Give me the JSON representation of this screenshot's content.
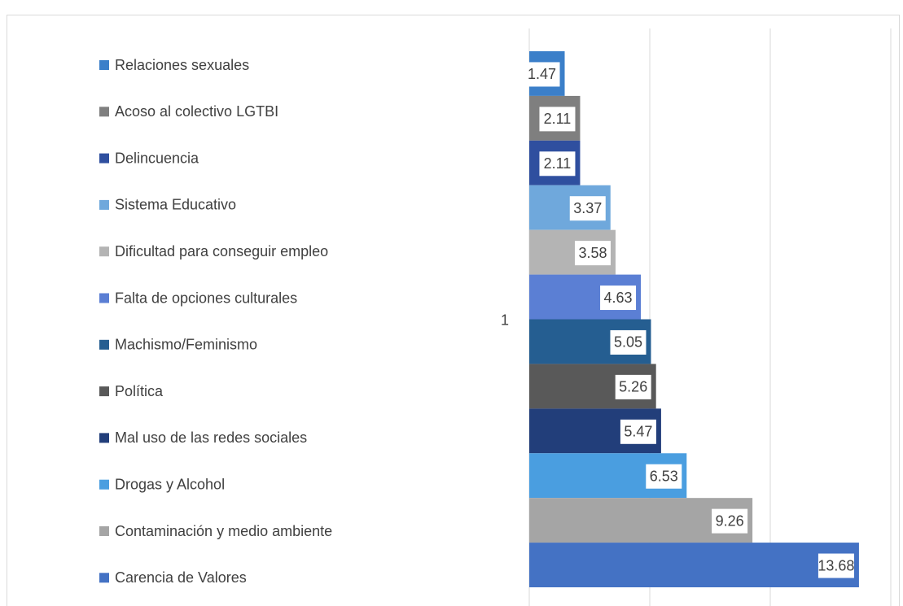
{
  "chart_data": {
    "type": "bar",
    "orientation": "horizontal",
    "categories": [
      "1"
    ],
    "series": [
      {
        "name": "Relaciones sexuales",
        "color": "#3b7fc9",
        "values": [
          1.47
        ]
      },
      {
        "name": "Acoso al colectivo LGTBI",
        "color": "#7f7f7f",
        "values": [
          2.11
        ]
      },
      {
        "name": "Delincuencia",
        "color": "#2f4f9f",
        "values": [
          2.11
        ]
      },
      {
        "name": "Sistema Educativo",
        "color": "#6fa8dc",
        "values": [
          3.37
        ]
      },
      {
        "name": "Dificultad para conseguir empleo",
        "color": "#b4b4b4",
        "values": [
          3.58
        ]
      },
      {
        "name": "Falta de opciones culturales",
        "color": "#5b7fd4",
        "values": [
          4.63
        ]
      },
      {
        "name": "Machismo/Feminismo",
        "color": "#255e91",
        "values": [
          5.05
        ]
      },
      {
        "name": "Política",
        "color": "#595959",
        "values": [
          5.26
        ]
      },
      {
        "name": "Mal uso de las redes sociales",
        "color": "#223e7a",
        "values": [
          5.47
        ]
      },
      {
        "name": "Drogas y Alcohol",
        "color": "#4a9ee0",
        "values": [
          6.53
        ]
      },
      {
        "name": "Contaminación y medio ambiente",
        "color": "#a5a5a5",
        "values": [
          9.26
        ]
      },
      {
        "name": "Carencia de Valores",
        "color": "#4472c4",
        "values": [
          13.68
        ]
      }
    ],
    "xlim": [
      0,
      15
    ],
    "xticks": [
      0,
      5,
      10,
      15
    ],
    "grid": true,
    "legend": "left"
  }
}
